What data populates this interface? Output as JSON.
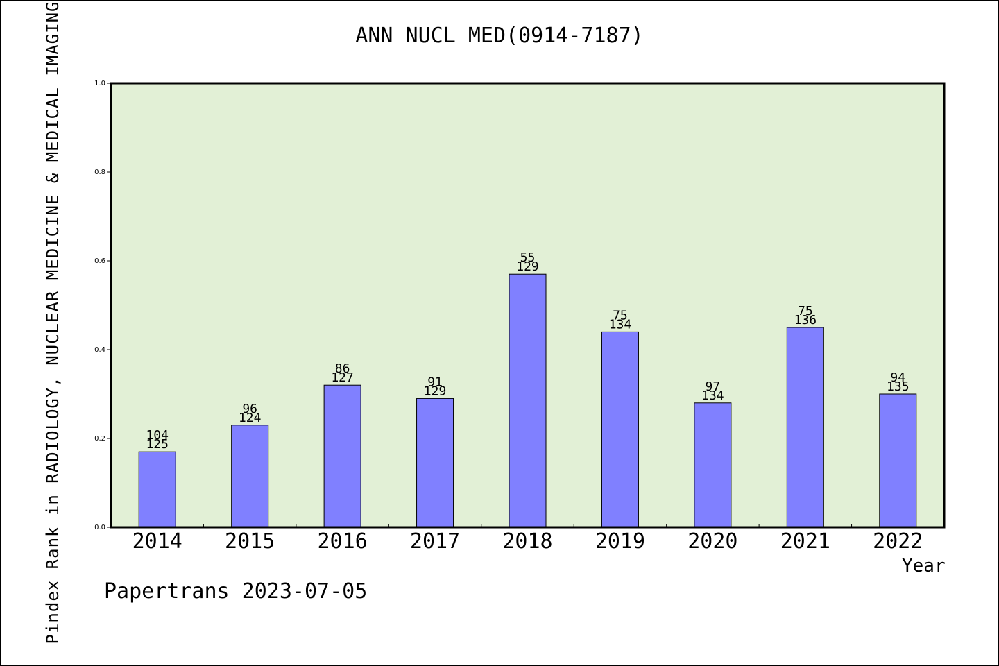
{
  "chart_data": {
    "type": "bar",
    "title": "ANN NUCL MED(0914-7187)",
    "xlabel": "Year",
    "ylabel": "Pindex Rank in RADIOLOGY, NUCLEAR MEDICINE & MEDICAL IMAGING",
    "ylim": [
      0,
      1.0
    ],
    "yticks": [
      "0.0",
      "0.2",
      "0.4",
      "0.6",
      "0.8",
      "1.0"
    ],
    "categories": [
      "2014",
      "2015",
      "2016",
      "2017",
      "2018",
      "2019",
      "2020",
      "2021",
      "2022"
    ],
    "values": [
      0.17,
      0.23,
      0.32,
      0.29,
      0.57,
      0.44,
      0.28,
      0.45,
      0.3
    ],
    "rank_labels": [
      "104",
      "96",
      "86",
      "91",
      "55",
      "75",
      "97",
      "75",
      "94"
    ],
    "total_labels": [
      "125",
      "124",
      "127",
      "129",
      "129",
      "134",
      "134",
      "136",
      "135"
    ],
    "grid": false,
    "colors": {
      "bar": "#8080ff",
      "plot_background": "#e2f0d6"
    }
  },
  "footer": {
    "text": "Papertrans 2023-07-05"
  }
}
